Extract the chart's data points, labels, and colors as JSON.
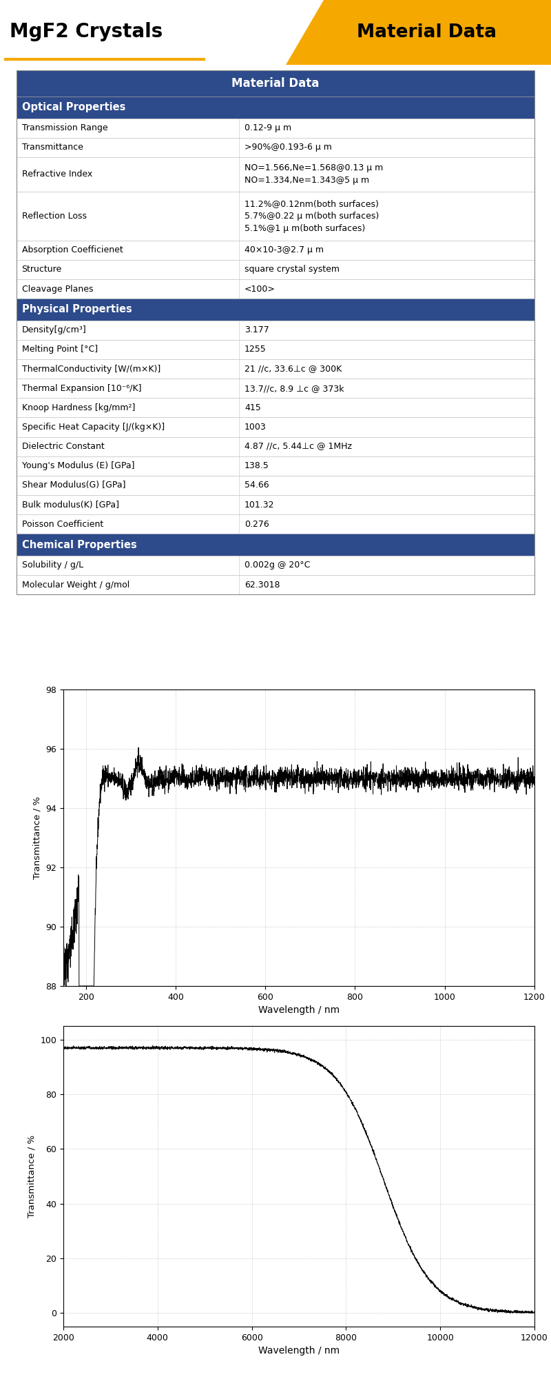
{
  "title_left": "MgF2 Crystals",
  "title_right": "Material Data",
  "header_color": "#2d4a8a",
  "orange_color": "#f5a800",
  "table_title": "Material Data",
  "sections": [
    {
      "name": "Optical Properties",
      "rows": [
        [
          "Transmission Range",
          "0.12-9 μ m"
        ],
        [
          "Transmittance",
          ">90%@0.193-6 μ m"
        ],
        [
          "Refractive Index",
          "NO=1.566,Ne=1.568@0.13 μ m\nNO=1.334,Ne=1.343@5 μ m"
        ],
        [
          "Reflection Loss",
          "11.2%@0.12nm(both surfaces)\n5.7%@0.22 μ m(both surfaces)\n5.1%@1 μ m(both surfaces)"
        ],
        [
          "Absorption Coefficienet",
          "40×10-3@2.7 μ m"
        ],
        [
          "Structure",
          "square crystal system"
        ],
        [
          "Cleavage Planes",
          "<100>"
        ]
      ]
    },
    {
      "name": "Physical Properties",
      "rows": [
        [
          "Density[g/cm³]",
          "3.177"
        ],
        [
          "Melting Point [°C]",
          "1255"
        ],
        [
          "ThermalConductivity [W/(m×K)]",
          "21 //c, 33.6⊥c @ 300K"
        ],
        [
          "Thermal Expansion [10⁻⁶/K]",
          "13.7//c, 8.9 ⊥c @ 373k"
        ],
        [
          "Knoop Hardness [kg/mm²]",
          "415"
        ],
        [
          "Specific Heat Capacity [J/(kg×K)]",
          "1003"
        ],
        [
          "Dielectric Constant",
          "4.87 //c, 5.44⊥c @ 1MHz"
        ],
        [
          "Young's Modulus (E) [GPa]",
          "138.5"
        ],
        [
          "Shear Modulus(G) [GPa]",
          "54.66"
        ],
        [
          "Bulk modulus(K) [GPa]",
          "101.32"
        ],
        [
          "Poisson Coefficient",
          "0.276"
        ]
      ]
    },
    {
      "name": "Chemical Properties",
      "rows": [
        [
          "Solubility / g/L",
          "0.002g @ 20°C"
        ],
        [
          "Molecular Weight / g/mol",
          "62.3018"
        ]
      ]
    }
  ],
  "chart1": {
    "xlabel": "Wavelength / nm",
    "ylabel": "Transmittance / %",
    "xmin": 150,
    "xmax": 1200,
    "ymin": 88,
    "ymax": 98,
    "yticks": [
      88,
      90,
      92,
      94,
      96,
      98
    ],
    "xticks": [
      200,
      400,
      600,
      800,
      1000,
      1200
    ]
  },
  "chart2": {
    "xlabel": "Wavelength / nm",
    "ylabel": "Transmittance / %",
    "xmin": 2000,
    "xmax": 12000,
    "ymin": -5,
    "ymax": 105,
    "yticks": [
      0,
      20,
      40,
      60,
      80,
      100
    ],
    "xticks": [
      2000,
      4000,
      6000,
      8000,
      10000,
      12000
    ]
  }
}
